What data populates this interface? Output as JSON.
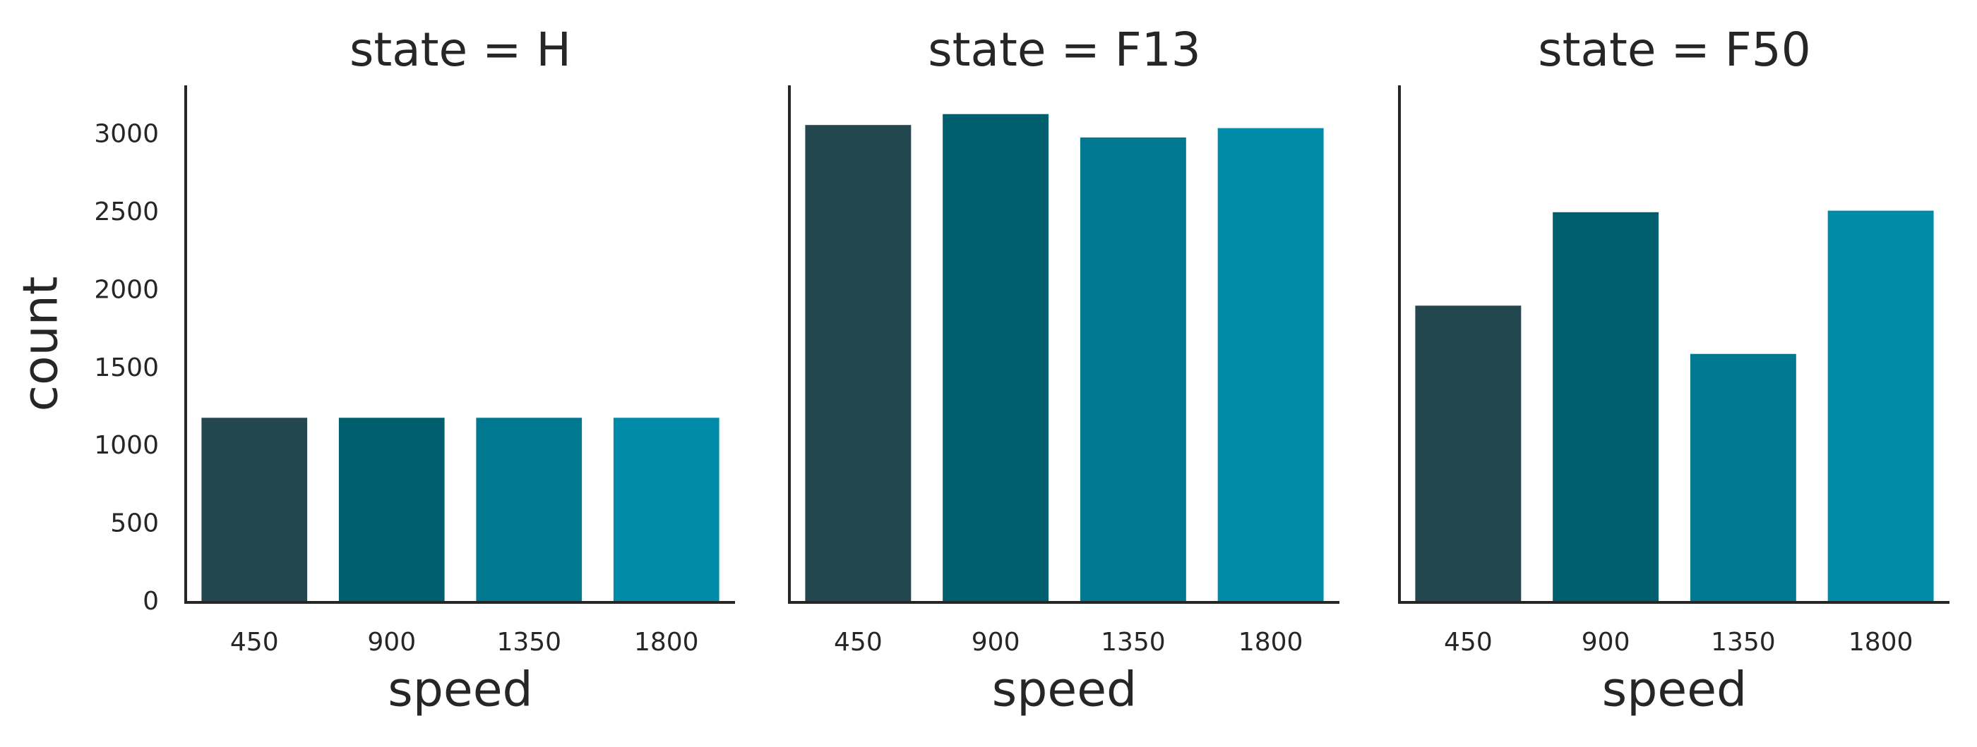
{
  "chart_data": [
    {
      "type": "bar",
      "title": "state = H",
      "xlabel": "speed",
      "ylabel": "count",
      "categories": [
        "450",
        "900",
        "1350",
        "1800"
      ],
      "values": [
        1190,
        1190,
        1190,
        1190
      ],
      "colors": [
        "#23474f",
        "#005f6e",
        "#00788f",
        "#008ba8"
      ],
      "ylim": [
        0,
        3320
      ],
      "yticks": [
        0,
        500,
        1000,
        1500,
        2000,
        2500,
        3000
      ]
    },
    {
      "type": "bar",
      "title": "state = F13",
      "xlabel": "speed",
      "categories": [
        "450",
        "900",
        "1350",
        "1800"
      ],
      "values": [
        3070,
        3140,
        2990,
        3050
      ],
      "colors": [
        "#23474f",
        "#005f6e",
        "#00788f",
        "#008ba8"
      ],
      "ylim": [
        0,
        3320
      ]
    },
    {
      "type": "bar",
      "title": "state = F50",
      "xlabel": "speed",
      "categories": [
        "450",
        "900",
        "1350",
        "1800"
      ],
      "values": [
        1910,
        2510,
        1600,
        2520
      ],
      "colors": [
        "#23474f",
        "#005f6e",
        "#00788f",
        "#008ba8"
      ],
      "ylim": [
        0,
        3320
      ]
    }
  ]
}
